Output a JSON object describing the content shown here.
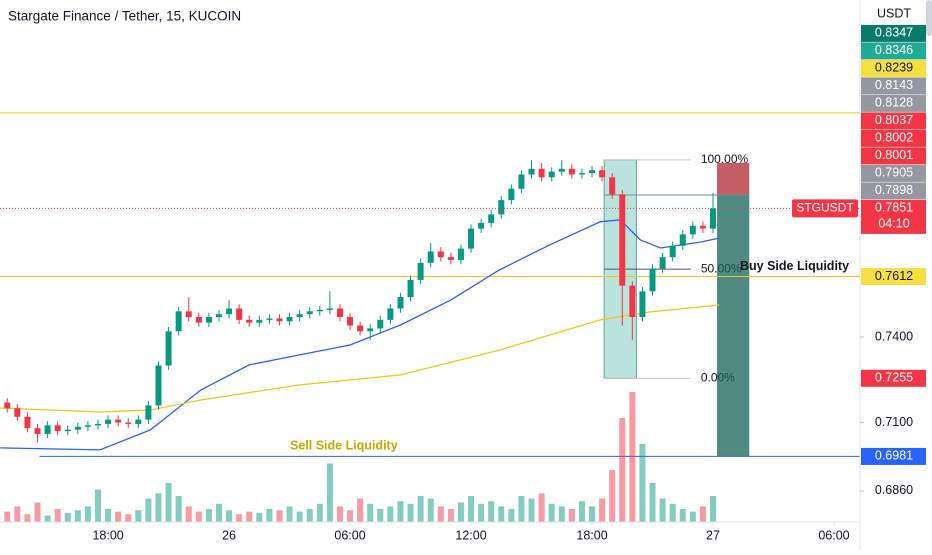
{
  "chart_data": {
    "type": "candlestick",
    "title": "Stargate Finance / Tether, 15, KUCOIN",
    "currency": "USDT",
    "symbol": "STGUSDT",
    "countdown": "04:10",
    "xlim": [
      -5.36,
      37.29
    ],
    "xticks": [
      {
        "value": 0,
        "label": "18:00"
      },
      {
        "value": 6,
        "label": "26"
      },
      {
        "value": 12,
        "label": "06:00"
      },
      {
        "value": 18,
        "label": "12:00"
      },
      {
        "value": 24,
        "label": "18:00"
      },
      {
        "value": 30,
        "label": "27"
      },
      {
        "value": 36,
        "label": "06:00"
      }
    ],
    "ylim": [
      0.6751,
      0.8582
    ],
    "yticks": [
      {
        "value": 0.74,
        "label": "0.7400"
      },
      {
        "value": 0.71,
        "label": "0.7100"
      },
      {
        "value": 0.686,
        "label": "0.6860"
      }
    ],
    "grid": false,
    "up_color": "#089981",
    "down_color": "#f23645",
    "x": [
      -5,
      -4.5,
      -4,
      -3.5,
      -3,
      -2.5,
      -2,
      -1.5,
      -1,
      -0.5,
      0,
      0.5,
      1,
      1.5,
      2,
      2.5,
      3,
      3.5,
      4,
      4.5,
      5,
      5.5,
      6,
      6.5,
      7,
      7.5,
      8,
      8.5,
      9,
      9.5,
      10,
      10.5,
      11,
      11.5,
      12,
      12.5,
      13,
      13.5,
      14,
      14.5,
      15,
      15.5,
      16,
      16.5,
      17,
      17.5,
      18,
      18.5,
      19,
      19.5,
      20,
      20.5,
      21,
      21.5,
      22,
      22.5,
      23,
      23.5,
      24,
      24.5,
      25,
      25.5,
      26,
      26.5,
      27,
      27.5,
      28,
      28.5,
      29,
      29.5,
      30
    ],
    "open": [
      0.717,
      0.715,
      0.712,
      0.708,
      0.706,
      0.709,
      0.707,
      0.7075,
      0.7085,
      0.709,
      0.7095,
      0.711,
      0.71,
      0.7095,
      0.711,
      0.716,
      0.73,
      0.742,
      0.749,
      0.747,
      0.745,
      0.747,
      0.748,
      0.75,
      0.746,
      0.745,
      0.746,
      0.7465,
      0.7455,
      0.747,
      0.748,
      0.749,
      0.7495,
      0.75,
      0.747,
      0.744,
      0.742,
      0.743,
      0.746,
      0.75,
      0.754,
      0.76,
      0.766,
      0.77,
      0.768,
      0.767,
      0.771,
      0.778,
      0.78,
      0.783,
      0.788,
      0.792,
      0.797,
      0.799,
      0.796,
      0.798,
      0.799,
      0.797,
      0.7975,
      0.7985,
      0.796,
      0.79,
      0.758,
      0.747,
      0.756,
      0.764,
      0.768,
      0.772,
      0.776,
      0.779,
      0.778
    ],
    "high": [
      0.7185,
      0.7165,
      0.7135,
      0.7095,
      0.7105,
      0.7105,
      0.709,
      0.71,
      0.7105,
      0.711,
      0.7125,
      0.7125,
      0.7115,
      0.7125,
      0.7175,
      0.7315,
      0.7435,
      0.7505,
      0.754,
      0.7485,
      0.7485,
      0.7495,
      0.753,
      0.7515,
      0.7475,
      0.7475,
      0.748,
      0.748,
      0.7485,
      0.7495,
      0.7505,
      0.751,
      0.756,
      0.7515,
      0.7485,
      0.7455,
      0.7445,
      0.7475,
      0.7515,
      0.7555,
      0.7615,
      0.7675,
      0.773,
      0.7715,
      0.7695,
      0.7725,
      0.7795,
      0.7815,
      0.7845,
      0.7895,
      0.7935,
      0.7985,
      0.802,
      0.801,
      0.7995,
      0.802,
      0.8005,
      0.799,
      0.8,
      0.8,
      0.7975,
      0.7915,
      0.7595,
      0.7575,
      0.7655,
      0.7695,
      0.7735,
      0.7775,
      0.7805,
      0.7805,
      0.7905
    ],
    "low": [
      0.7135,
      0.7105,
      0.7065,
      0.703,
      0.7045,
      0.7055,
      0.7055,
      0.706,
      0.707,
      0.7075,
      0.708,
      0.7085,
      0.708,
      0.708,
      0.7095,
      0.7145,
      0.7285,
      0.7405,
      0.7455,
      0.7435,
      0.7435,
      0.7455,
      0.7465,
      0.7445,
      0.7435,
      0.7435,
      0.7445,
      0.744,
      0.744,
      0.7455,
      0.7465,
      0.7475,
      0.748,
      0.7455,
      0.7425,
      0.7405,
      0.739,
      0.7415,
      0.7445,
      0.7485,
      0.7525,
      0.7585,
      0.7645,
      0.7665,
      0.7655,
      0.7655,
      0.7695,
      0.7765,
      0.7785,
      0.7815,
      0.7865,
      0.7905,
      0.7955,
      0.7945,
      0.7945,
      0.7965,
      0.7955,
      0.7955,
      0.796,
      0.7945,
      0.7885,
      0.744,
      0.739,
      0.7455,
      0.7545,
      0.7625,
      0.7665,
      0.7705,
      0.7745,
      0.7765,
      0.7765
    ],
    "close": [
      0.715,
      0.712,
      0.708,
      0.706,
      0.709,
      0.707,
      0.7075,
      0.7085,
      0.709,
      0.7095,
      0.711,
      0.71,
      0.7095,
      0.711,
      0.716,
      0.73,
      0.742,
      0.749,
      0.747,
      0.745,
      0.747,
      0.748,
      0.75,
      0.746,
      0.745,
      0.746,
      0.7465,
      0.7455,
      0.747,
      0.748,
      0.749,
      0.7495,
      0.75,
      0.747,
      0.744,
      0.742,
      0.743,
      0.746,
      0.75,
      0.754,
      0.76,
      0.766,
      0.77,
      0.768,
      0.767,
      0.771,
      0.778,
      0.78,
      0.783,
      0.788,
      0.792,
      0.797,
      0.799,
      0.796,
      0.798,
      0.799,
      0.797,
      0.7975,
      0.7985,
      0.796,
      0.79,
      0.758,
      0.747,
      0.756,
      0.764,
      0.768,
      0.772,
      0.776,
      0.779,
      0.778,
      0.7851
    ],
    "volume": [
      8,
      12,
      6,
      15,
      5,
      10,
      7,
      9,
      12,
      25,
      10,
      8,
      6,
      9,
      18,
      22,
      30,
      20,
      12,
      8,
      10,
      14,
      9,
      6,
      8,
      7,
      10,
      9,
      12,
      8,
      10,
      14,
      45,
      12,
      9,
      18,
      14,
      10,
      12,
      16,
      14,
      20,
      18,
      12,
      10,
      15,
      20,
      14,
      16,
      12,
      10,
      20,
      18,
      22,
      14,
      12,
      10,
      16,
      12,
      18,
      40,
      80,
      100,
      60,
      30,
      18,
      14,
      10,
      8,
      12,
      20
    ],
    "moving_averages": [
      {
        "color": "#2962ff",
        "x": [
          -5.35,
          -0.4,
          2.1,
          4.6,
          7.0,
          9.5,
          12.0,
          14.5,
          17.0,
          19.4,
          21.9,
          24.4,
          25.4,
          26.4,
          27.4,
          29.4,
          30.3
        ],
        "values": [
          0.7011,
          0.7004,
          0.7074,
          0.7214,
          0.7302,
          0.7337,
          0.7372,
          0.7442,
          0.753,
          0.7635,
          0.7723,
          0.7804,
          0.7811,
          0.774,
          0.7712,
          0.7733,
          0.7747
        ]
      },
      {
        "color": "#f5c518",
        "x": [
          -5.35,
          -0.4,
          2.1,
          4.6,
          9.5,
          14.5,
          19.4,
          24.4,
          26.9,
          30.3
        ],
        "values": [
          0.7151,
          0.7137,
          0.7144,
          0.7179,
          0.7232,
          0.7267,
          0.7354,
          0.746,
          0.7488,
          0.7512
        ]
      }
    ],
    "levels": [
      {
        "value": 0.8186,
        "color": "#f5c518"
      },
      {
        "value": 0.7612,
        "color": "#f5c518",
        "label": "Buy Side Liquidity"
      },
      {
        "value": 0.6981,
        "color": "#2962ff",
        "label": "Sell Side Liquidity",
        "x_start": -3.4
      }
    ],
    "fib": {
      "x": [
        24.6,
        28.9
      ],
      "box_x": [
        24.6,
        26.2
      ],
      "levels": [
        {
          "value": 0.8021,
          "label": "100.00%"
        },
        {
          "value": 0.7638,
          "label": "50.00%"
        },
        {
          "value": 0.7255,
          "label": "0.00%"
        }
      ]
    },
    "position": {
      "x": [
        30.2,
        31.8
      ],
      "entry": 0.7898,
      "stop": 0.8011,
      "target": 0.6981
    },
    "price_labels": [
      {
        "value": 0.8347,
        "color": "#0b7a68"
      },
      {
        "value": 0.8346,
        "color": "#22ab94"
      },
      {
        "value": 0.8239,
        "color": "#f5e042"
      },
      {
        "value": 0.8143,
        "color": "#9598a1"
      },
      {
        "value": 0.8128,
        "color": "#9598a1"
      },
      {
        "value": 0.8037,
        "color": "#f23645"
      },
      {
        "value": 0.8002,
        "color": "#f23645"
      },
      {
        "value": 0.8001,
        "color": "#f23645"
      },
      {
        "value": 0.7905,
        "color": "#9598a1"
      },
      {
        "value": 0.7898,
        "color": "#9598a1"
      },
      {
        "value": 0.7851,
        "color": "#f23645"
      },
      {
        "value": 0.7612,
        "color": "#f5e042"
      },
      {
        "value": 0.7255,
        "color": "#f23645"
      },
      {
        "value": 0.6981,
        "color": "#2962ff"
      }
    ]
  }
}
